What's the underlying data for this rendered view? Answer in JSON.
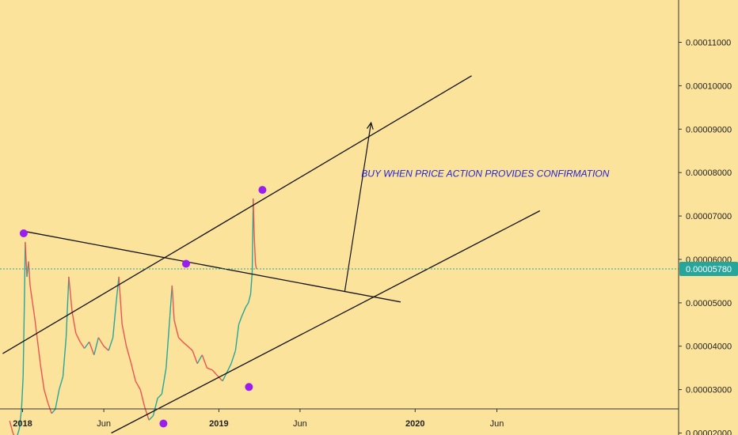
{
  "chart_data": {
    "type": "line",
    "title": "",
    "xlabel": "",
    "ylabel": "",
    "ylim": [
      1.955e-05,
      0.00011975
    ],
    "xlim": [
      "2017-11-20",
      "2021-05-05"
    ],
    "x_ticks": [
      {
        "date": "2018-01-01",
        "label": "2018",
        "bold": true
      },
      {
        "date": "2018-06-01",
        "label": "Jun",
        "bold": false
      },
      {
        "date": "2019-01-01",
        "label": "2019",
        "bold": true
      },
      {
        "date": "2019-06-01",
        "label": "Jun",
        "bold": false
      },
      {
        "date": "2020-01-01",
        "label": "2020",
        "bold": true
      },
      {
        "date": "2020-06-01",
        "label": "Jun",
        "bold": false
      }
    ],
    "y_ticks": [
      2e-05,
      3e-05,
      4e-05,
      5e-05,
      6e-05,
      7e-05,
      8e-05,
      9e-05,
      0.0001,
      0.00011
    ],
    "y_tick_labels": [
      "0.00002000",
      "0.00003000",
      "0.00004000",
      "0.00005000",
      "0.00006000",
      "0.00007000",
      "0.00008000",
      "0.00009000",
      "0.00010000",
      "0.00011000"
    ],
    "current_price": 5.78e-05,
    "current_price_label": "0.00005780",
    "series": [
      {
        "color_up": "#26a69a",
        "color_down": "#ef5350",
        "points": [
          [
            "2017-12-08",
            2.28e-05
          ],
          [
            "2017-12-14",
            2e-05
          ],
          [
            "2017-12-20",
            1.85e-05
          ],
          [
            "2017-12-26",
            2.1e-05
          ],
          [
            "2017-12-30",
            2.55e-05
          ],
          [
            "2018-01-02",
            3.3e-05
          ],
          [
            "2018-01-04",
            4.8e-05
          ],
          [
            "2018-01-06",
            6.4e-05
          ],
          [
            "2018-01-09",
            5.6e-05
          ],
          [
            "2018-01-12",
            5.95e-05
          ],
          [
            "2018-01-15",
            5.4e-05
          ],
          [
            "2018-01-19",
            5.05e-05
          ],
          [
            "2018-01-23",
            4.7e-05
          ],
          [
            "2018-01-28",
            4.2e-05
          ],
          [
            "2018-02-03",
            3.6e-05
          ],
          [
            "2018-02-10",
            3e-05
          ],
          [
            "2018-02-17",
            2.7e-05
          ],
          [
            "2018-02-24",
            2.45e-05
          ],
          [
            "2018-03-03",
            2.55e-05
          ],
          [
            "2018-03-10",
            3e-05
          ],
          [
            "2018-03-17",
            3.3e-05
          ],
          [
            "2018-03-23",
            4.2e-05
          ],
          [
            "2018-03-28",
            5.6e-05
          ],
          [
            "2018-04-03",
            4.8e-05
          ],
          [
            "2018-04-10",
            4.3e-05
          ],
          [
            "2018-04-18",
            4.1e-05
          ],
          [
            "2018-04-26",
            3.95e-05
          ],
          [
            "2018-05-05",
            4.1e-05
          ],
          [
            "2018-05-14",
            3.8e-05
          ],
          [
            "2018-05-22",
            4.2e-05
          ],
          [
            "2018-06-01",
            4e-05
          ],
          [
            "2018-06-10",
            3.9e-05
          ],
          [
            "2018-06-18",
            4.2e-05
          ],
          [
            "2018-06-24",
            5e-05
          ],
          [
            "2018-06-29",
            5.6e-05
          ],
          [
            "2018-07-05",
            4.5e-05
          ],
          [
            "2018-07-13",
            4e-05
          ],
          [
            "2018-07-22",
            3.6e-05
          ],
          [
            "2018-07-30",
            3.2e-05
          ],
          [
            "2018-08-08",
            3e-05
          ],
          [
            "2018-08-16",
            2.6e-05
          ],
          [
            "2018-08-24",
            2.3e-05
          ],
          [
            "2018-09-01",
            2.4e-05
          ],
          [
            "2018-09-09",
            2.8e-05
          ],
          [
            "2018-09-17",
            2.9e-05
          ],
          [
            "2018-09-25",
            3.5e-05
          ],
          [
            "2018-10-02",
            4.7e-05
          ],
          [
            "2018-10-06",
            5.4e-05
          ],
          [
            "2018-10-10",
            4.6e-05
          ],
          [
            "2018-10-18",
            4.2e-05
          ],
          [
            "2018-10-26",
            4.1e-05
          ],
          [
            "2018-11-04",
            4e-05
          ],
          [
            "2018-11-13",
            3.9e-05
          ],
          [
            "2018-11-22",
            3.6e-05
          ],
          [
            "2018-12-01",
            3.8e-05
          ],
          [
            "2018-12-10",
            3.5e-05
          ],
          [
            "2018-12-20",
            3.45e-05
          ],
          [
            "2018-12-31",
            3.3e-05
          ],
          [
            "2019-01-08",
            3.2e-05
          ],
          [
            "2019-01-16",
            3.4e-05
          ],
          [
            "2019-01-24",
            3.6e-05
          ],
          [
            "2019-02-01",
            3.9e-05
          ],
          [
            "2019-02-07",
            4.5e-05
          ],
          [
            "2019-02-13",
            4.7e-05
          ],
          [
            "2019-02-20",
            4.9e-05
          ],
          [
            "2019-02-25",
            5e-05
          ],
          [
            "2019-03-01",
            5.2e-05
          ],
          [
            "2019-03-04",
            5.7e-05
          ],
          [
            "2019-03-06",
            7.4e-05
          ],
          [
            "2019-03-08",
            6.5e-05
          ],
          [
            "2019-03-10",
            5.9e-05
          ],
          [
            "2019-03-12",
            5.78e-05
          ]
        ]
      }
    ],
    "drawn_lines": [
      {
        "from": [
          "2017-11-25",
          3.83e-05
        ],
        "to": [
          "2020-04-15",
          0.0001023
        ]
      },
      {
        "from": [
          "2018-06-15",
          2e-05
        ],
        "to": [
          "2020-08-20",
          7.12e-05
        ]
      },
      {
        "from": [
          "2018-01-03",
          6.65e-05
        ],
        "to": [
          "2019-12-05",
          5.02e-05
        ]
      }
    ],
    "markers": [
      [
        "2018-01-03",
        6.6e-05
      ],
      [
        "2018-11-01",
        5.9e-05
      ],
      [
        "2019-03-23",
        7.6e-05
      ],
      [
        "2019-02-26",
        3.06e-05
      ],
      [
        "2018-09-20",
        2.22e-05
      ]
    ],
    "arrow": {
      "from": [
        "2019-08-23",
        5.25e-05
      ],
      "to": [
        "2019-10-11",
        9.15e-05
      ]
    },
    "annotations": [
      {
        "text": "BUY WHEN PRICE ACTION PROVIDES CONFIRMATION",
        "date": "2019-09-23",
        "value": 7.9e-05
      }
    ],
    "colors": {
      "background": "#fbe39c",
      "price_line": "#26a69a",
      "marker": "#9b1ef0",
      "annotation": "#1f1fd6",
      "trend_line": "#111111"
    }
  }
}
